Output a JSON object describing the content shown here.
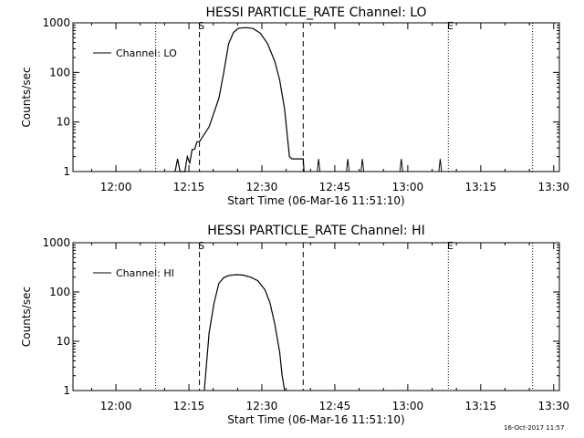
{
  "footer_timestamp": "16-Oct-2017 11:57",
  "chart_data": [
    {
      "type": "line",
      "title": "HESSI PARTICLE_RATE Channel: LO",
      "xlabel": "Start Time (06-Mar-16 11:51:10)",
      "ylabel": "Counts/sec",
      "y_scale": "log",
      "x_unit": "minutes after 11:51:10",
      "xlim": [
        0,
        100
      ],
      "ylim": [
        1,
        1000
      ],
      "x_ticks": [
        "12:00",
        "12:15",
        "12:30",
        "12:45",
        "13:00",
        "13:15",
        "13:30"
      ],
      "y_ticks": [
        "1",
        "10",
        "100",
        "1000"
      ],
      "legend": [
        "Channel: LO"
      ],
      "legend_position": "upper-left",
      "markers": [
        {
          "label": "S",
          "time": "12:17:10",
          "style": "dashed"
        },
        {
          "label": "",
          "time": "12:38:30",
          "style": "dashed"
        },
        {
          "label": "",
          "time": "12:08:10",
          "style": "dotted"
        },
        {
          "label": "E",
          "time": "13:08:20",
          "style": "dotted"
        },
        {
          "label": "",
          "time": "13:25:40",
          "style": "dotted"
        }
      ],
      "series": [
        {
          "name": "Channel: LO",
          "points": [
            [
              "12:12:10",
              1
            ],
            [
              "12:12:40",
              1.8
            ],
            [
              "12:13:10",
              1
            ],
            [
              "12:14:10",
              1
            ],
            [
              "12:14:40",
              2
            ],
            [
              "12:15:10",
              1.5
            ],
            [
              "12:15:40",
              2.8
            ],
            [
              "12:16:10",
              2.8
            ],
            [
              "12:16:40",
              4
            ],
            [
              "12:17:10",
              4
            ],
            [
              "12:19:10",
              8
            ],
            [
              "12:21:10",
              30
            ],
            [
              "12:22:10",
              100
            ],
            [
              "12:23:10",
              380
            ],
            [
              "12:24:10",
              640
            ],
            [
              "12:25:10",
              780
            ],
            [
              "12:26:40",
              800
            ],
            [
              "12:28:10",
              770
            ],
            [
              "12:29:40",
              620
            ],
            [
              "12:31:10",
              380
            ],
            [
              "12:32:40",
              165
            ],
            [
              "12:33:40",
              70
            ],
            [
              "12:34:40",
              18
            ],
            [
              "12:35:40",
              2
            ],
            [
              "12:36:10",
              1.8
            ],
            [
              "12:38:30",
              1.8
            ],
            [
              "12:38:40",
              1
            ]
          ],
          "spikes": [
            {
              "time": "12:41:40",
              "value": 1.8
            },
            {
              "time": "12:47:40",
              "value": 1.8
            },
            {
              "time": "12:50:40",
              "value": 1.8
            },
            {
              "time": "12:58:40",
              "value": 1.8
            },
            {
              "time": "13:06:40",
              "value": 1.8
            }
          ]
        }
      ]
    },
    {
      "type": "line",
      "title": "HESSI PARTICLE_RATE Channel: HI",
      "xlabel": "Start Time (06-Mar-16 11:51:10)",
      "ylabel": "Counts/sec",
      "y_scale": "log",
      "x_unit": "minutes after 11:51:10",
      "xlim": [
        0,
        100
      ],
      "ylim": [
        1,
        1000
      ],
      "x_ticks": [
        "12:00",
        "12:15",
        "12:30",
        "12:45",
        "13:00",
        "13:15",
        "13:30"
      ],
      "y_ticks": [
        "1",
        "10",
        "100",
        "1000"
      ],
      "legend": [
        "Channel: HI"
      ],
      "legend_position": "upper-left",
      "markers": [
        {
          "label": "S",
          "time": "12:17:10",
          "style": "dashed"
        },
        {
          "label": "",
          "time": "12:38:30",
          "style": "dashed"
        },
        {
          "label": "",
          "time": "12:08:10",
          "style": "dotted"
        },
        {
          "label": "E",
          "time": "13:08:20",
          "style": "dotted"
        },
        {
          "label": "",
          "time": "13:25:40",
          "style": "dotted"
        }
      ],
      "series": [
        {
          "name": "Channel: HI",
          "points": [
            [
              "12:18:10",
              1
            ],
            [
              "12:18:40",
              4
            ],
            [
              "12:19:10",
              15
            ],
            [
              "12:20:10",
              60
            ],
            [
              "12:21:10",
              150
            ],
            [
              "12:22:10",
              195
            ],
            [
              "12:23:10",
              215
            ],
            [
              "12:24:40",
              225
            ],
            [
              "12:26:10",
              220
            ],
            [
              "12:27:40",
              200
            ],
            [
              "12:29:10",
              170
            ],
            [
              "12:30:40",
              110
            ],
            [
              "12:31:40",
              60
            ],
            [
              "12:32:40",
              22
            ],
            [
              "12:33:40",
              6
            ],
            [
              "12:34:10",
              2
            ],
            [
              "12:34:40",
              1
            ]
          ],
          "spikes": []
        }
      ]
    }
  ]
}
